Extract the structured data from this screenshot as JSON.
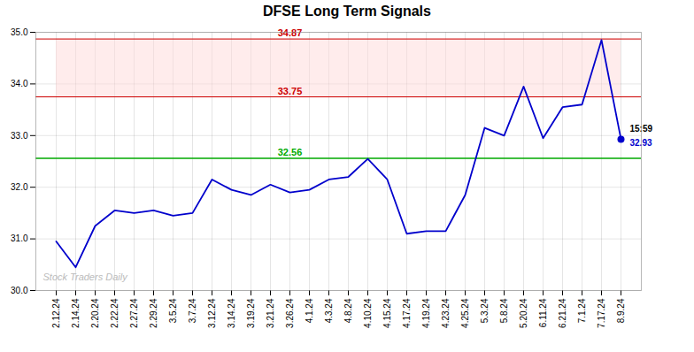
{
  "chart_data": {
    "type": "line",
    "title": "DFSE Long Term Signals",
    "categories": [
      "2.12.24",
      "2.14.24",
      "2.20.24",
      "2.22.24",
      "2.27.24",
      "2.29.24",
      "3.5.24",
      "3.7.24",
      "3.12.24",
      "3.14.24",
      "3.19.24",
      "3.21.24",
      "3.26.24",
      "4.1.24",
      "4.3.24",
      "4.8.24",
      "4.10.24",
      "4.15.24",
      "4.17.24",
      "4.19.24",
      "4.23.24",
      "4.25.24",
      "5.3.24",
      "5.8.24",
      "5.20.24",
      "6.11.24",
      "6.21.24",
      "7.1.24",
      "7.17.24",
      "8.9.24"
    ],
    "values": [
      30.95,
      30.45,
      31.25,
      31.55,
      31.5,
      31.55,
      31.45,
      31.5,
      32.15,
      31.95,
      31.85,
      32.05,
      31.9,
      31.95,
      32.15,
      32.2,
      32.55,
      32.15,
      31.1,
      31.15,
      31.15,
      31.85,
      33.15,
      33.0,
      33.95,
      32.95,
      33.55,
      33.6,
      34.85,
      32.93
    ],
    "color": "#0000cc",
    "ylim": [
      30,
      35
    ],
    "yticks": [
      30,
      31,
      32,
      33,
      34,
      35
    ],
    "grid": true,
    "hlines": [
      {
        "value": 32.56,
        "label": "32.56",
        "color": "#00aa00"
      },
      {
        "value": 33.75,
        "label": "33.75",
        "color": "#cc0000"
      },
      {
        "value": 34.87,
        "label": "34.87",
        "color": "#cc0000"
      }
    ],
    "band": {
      "from": 33.75,
      "to": 34.87,
      "color": "rgba(255, 217, 217, 0.5)"
    },
    "annotations": [
      {
        "text": "15:59",
        "color": "#000000"
      },
      {
        "text": "32.93",
        "color": "#0000cc"
      }
    ],
    "watermark": {
      "text": "Stock Traders Daily",
      "color": "#bbbbbb"
    }
  }
}
